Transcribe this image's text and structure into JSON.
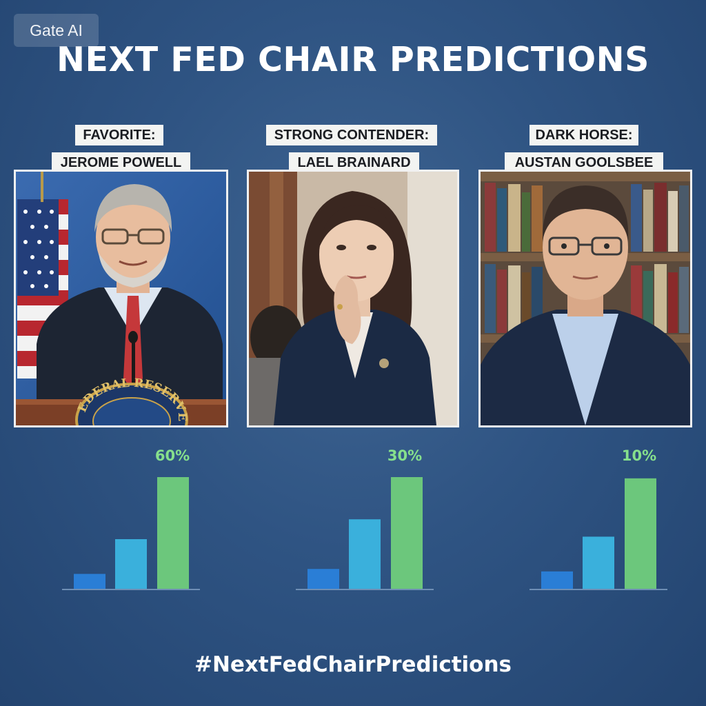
{
  "watermark": "Gate AI",
  "title": "NEXT FED CHAIR PREDICTIONS",
  "hashtag": "#NextFedChairPredictions",
  "colors": {
    "bar_small": "#2a7ed6",
    "bar_mid": "#3ab0dc",
    "bar_tall": "#6cc77c",
    "percent_text": "#86e08c"
  },
  "candidates": [
    {
      "role": "FAVORITE:",
      "name": "JEROME POWELL",
      "percent_label": "60%",
      "chart_data": {
        "type": "bar",
        "categories": [
          "",
          "",
          ""
        ],
        "values": [
          12,
          40,
          90
        ],
        "ylim": [
          0,
          100
        ]
      }
    },
    {
      "role": "STRONG CONTENDER:",
      "name": "LAEL BRAINARD",
      "percent_label": "30%",
      "chart_data": {
        "type": "bar",
        "categories": [
          "",
          "",
          ""
        ],
        "values": [
          16,
          56,
          90
        ],
        "ylim": [
          0,
          100
        ]
      }
    },
    {
      "role": "DARK HORSE:",
      "name": "AUSTAN GOOLSBEE",
      "percent_label": "10%",
      "chart_data": {
        "type": "bar",
        "categories": [
          "",
          "",
          ""
        ],
        "values": [
          14,
          42,
          89
        ],
        "ylim": [
          0,
          100
        ]
      }
    }
  ],
  "podium_seal_text": "FEDERAL RESERVE"
}
